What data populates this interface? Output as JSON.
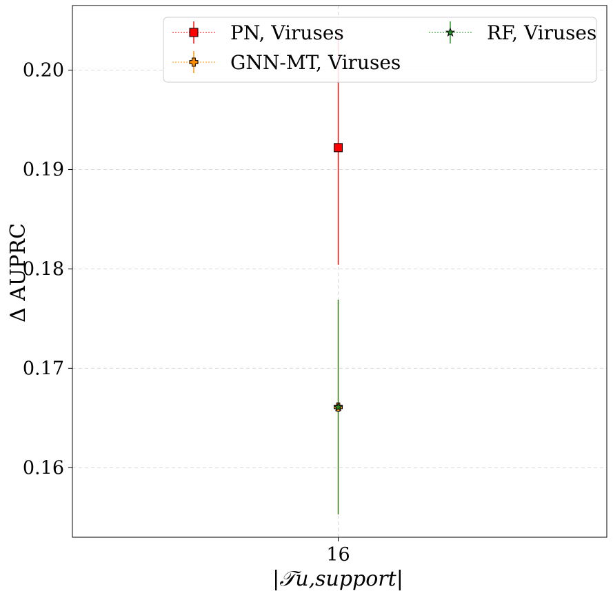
{
  "chart_data": {
    "type": "scatter",
    "xlabel": "|𝒯u,support|",
    "ylabel": "Δ AUPRC",
    "x_categories": [
      "16"
    ],
    "ylim": [
      0.153,
      0.2065
    ],
    "yticks": [
      "0.16",
      "0.17",
      "0.18",
      "0.19",
      "0.20"
    ],
    "ytick_values": [
      0.16,
      0.17,
      0.18,
      0.19,
      0.2
    ],
    "grid": true,
    "legend": {
      "placement": "top-right",
      "columns": 2
    },
    "series": [
      {
        "name": "PN, Viruses",
        "x": "16",
        "y": 0.1922,
        "err_low": 0.1804,
        "err_high": 0.204,
        "color": "#ff0000",
        "marker": "square"
      },
      {
        "name": "GNN-MT, Viruses",
        "x": "16",
        "y": 0.1661,
        "err_low": 0.1553,
        "err_high": 0.1769,
        "color": "#ff8c00",
        "marker": "plus"
      },
      {
        "name": "RF, Viruses",
        "x": "16",
        "y": 0.1661,
        "err_low": 0.1553,
        "err_high": 0.1769,
        "color": "#228b22",
        "marker": "star"
      }
    ]
  }
}
